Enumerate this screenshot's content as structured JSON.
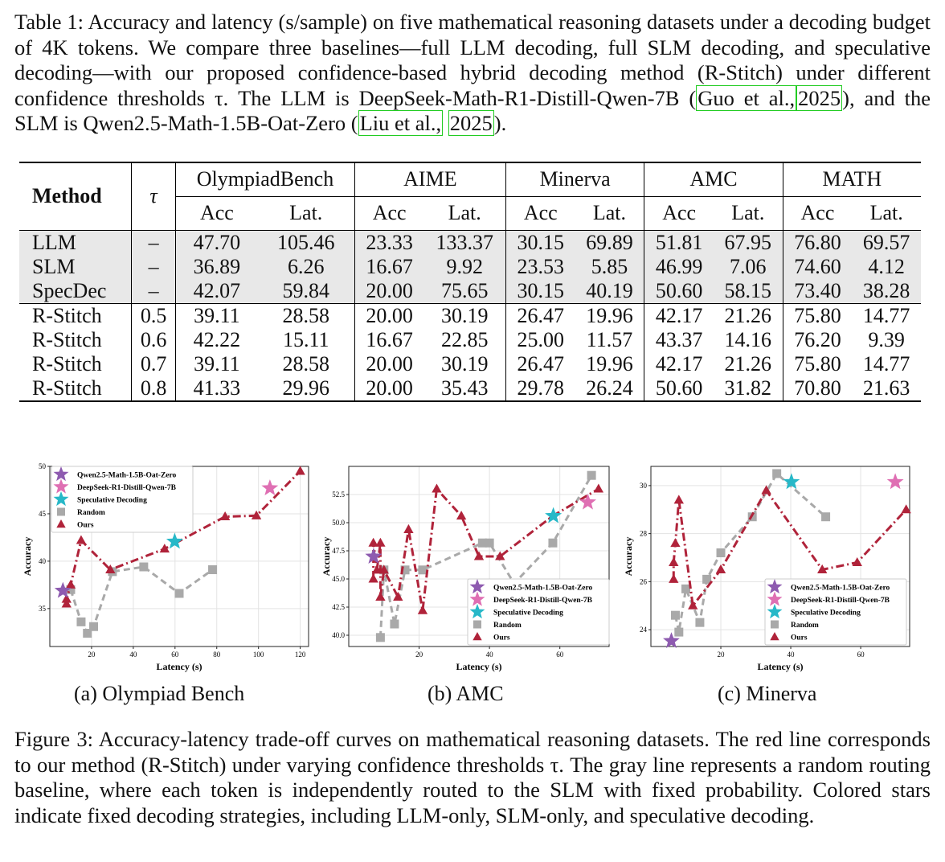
{
  "table_caption": {
    "prefix": "Table 1: Accuracy and latency (s/sample) on five mathematical reasoning datasets under a decoding budget of 4K tokens. We compare three baselines—full LLM decoding, full SLM decoding, and speculative decoding—with our proposed confidence-based hybrid decoding method (R-Stitch) under different confidence thresholds τ. The LLM is DeepSeek-Math-R1-Distill-Qwen-7B (",
    "cite1": "Guo et al.,",
    "cite2": "2025",
    "mid": "), and the SLM is Qwen2.5-Math-1.5B-Oat-Zero (",
    "cite3": "Liu et al.,",
    "cite4": "2025",
    "suffix": ")."
  },
  "table": {
    "method_header": "Method",
    "tau_header": "τ",
    "datasets": [
      "OlympiadBench",
      "AIME",
      "Minerva",
      "AMC",
      "MATH"
    ],
    "acc_label": "Acc",
    "lat_label": "Lat.",
    "baselines": [
      {
        "method": "LLM",
        "tau": "–",
        "values": [
          "47.70",
          "105.46",
          "23.33",
          "133.37",
          "30.15",
          "69.89",
          "51.81",
          "67.95",
          "76.80",
          "69.57"
        ]
      },
      {
        "method": "SLM",
        "tau": "–",
        "values": [
          "36.89",
          "6.26",
          "16.67",
          "9.92",
          "23.53",
          "5.85",
          "46.99",
          "7.06",
          "74.60",
          "4.12"
        ]
      },
      {
        "method": "SpecDec",
        "tau": "–",
        "values": [
          "42.07",
          "59.84",
          "20.00",
          "75.65",
          "30.15",
          "40.19",
          "50.60",
          "58.15",
          "73.40",
          "38.28"
        ]
      }
    ],
    "rstitch": [
      {
        "method": "R-Stitch",
        "tau": "0.5",
        "values": [
          "39.11",
          "28.58",
          "20.00",
          "30.19",
          "26.47",
          "19.96",
          "42.17",
          "21.26",
          "75.80",
          "14.77"
        ]
      },
      {
        "method": "R-Stitch",
        "tau": "0.6",
        "values": [
          "42.22",
          "15.11",
          "16.67",
          "22.85",
          "25.00",
          "11.57",
          "43.37",
          "14.16",
          "76.20",
          "9.39"
        ]
      },
      {
        "method": "R-Stitch",
        "tau": "0.7",
        "values": [
          "39.11",
          "28.58",
          "20.00",
          "30.19",
          "26.47",
          "19.96",
          "42.17",
          "21.26",
          "75.80",
          "14.77"
        ]
      },
      {
        "method": "R-Stitch",
        "tau": "0.8",
        "values": [
          "41.33",
          "29.96",
          "20.00",
          "35.43",
          "29.78",
          "26.24",
          "50.60",
          "31.82",
          "70.80",
          "21.63"
        ]
      }
    ]
  },
  "colors": {
    "slm_star": "#8e5bb0",
    "llm_star": "#df6fb3",
    "spec_star": "#27b8c8",
    "random": "#a9a9a9",
    "ours": "#b0233a"
  },
  "legend": [
    "Qwen2.5-Math-1.5B-Oat-Zero",
    "DeepSeek-R1-Distill-Qwen-7B",
    "Speculative Decoding",
    "Random",
    "Ours"
  ],
  "chart_data": [
    {
      "type": "scatter",
      "title": "",
      "subcaption": "(a) Olympiad Bench",
      "xlabel": "Latency (s)",
      "ylabel": "Accuracy",
      "xlim": [
        0,
        124
      ],
      "ylim": [
        31,
        50
      ],
      "xticks": [
        20,
        40,
        60,
        80,
        100,
        120
      ],
      "yticks": [
        35,
        40,
        45,
        50
      ],
      "legend_position": "upper-left",
      "slm": [
        6.26,
        36.89
      ],
      "llm": [
        105.46,
        47.7
      ],
      "spec": [
        59.84,
        42.07
      ],
      "random": [
        [
          10,
          37.0
        ],
        [
          15,
          33.6
        ],
        [
          18,
          32.4
        ],
        [
          21,
          33.1
        ],
        [
          30,
          38.9
        ],
        [
          45,
          39.4
        ],
        [
          62,
          36.6
        ],
        [
          78,
          39.1
        ]
      ],
      "ours": [
        [
          8,
          35.5
        ],
        [
          8,
          36.0
        ],
        [
          10,
          37.5
        ],
        [
          15,
          42.2
        ],
        [
          29,
          39.1
        ],
        [
          55,
          41.3
        ],
        [
          84,
          44.7
        ],
        [
          99,
          44.8
        ],
        [
          120,
          49.5
        ]
      ]
    },
    {
      "type": "scatter",
      "title": "",
      "subcaption": "(b) AMC",
      "xlabel": "Latency (s)",
      "ylabel": "Accuracy",
      "xlim": [
        0,
        74
      ],
      "ylim": [
        39,
        55
      ],
      "xticks": [
        20,
        40,
        60
      ],
      "yticks": [
        40.0,
        42.5,
        45.0,
        47.5,
        50.0,
        52.5
      ],
      "legend_position": "lower-right",
      "slm": [
        7.06,
        46.99
      ],
      "llm": [
        67.95,
        51.81
      ],
      "spec": [
        58.15,
        50.6
      ],
      "random": [
        [
          9,
          39.8
        ],
        [
          10,
          45.8
        ],
        [
          13,
          41.0
        ],
        [
          16,
          45.8
        ],
        [
          21,
          45.8
        ],
        [
          38,
          48.2
        ],
        [
          40,
          48.2
        ],
        [
          47,
          44.6
        ],
        [
          58,
          48.2
        ],
        [
          69,
          54.2
        ]
      ],
      "ours": [
        [
          7,
          45.0
        ],
        [
          7,
          48.2
        ],
        [
          8,
          45.8
        ],
        [
          9,
          48.2
        ],
        [
          9,
          43.4
        ],
        [
          10,
          45.8
        ],
        [
          14,
          43.4
        ],
        [
          17,
          49.4
        ],
        [
          21,
          42.2
        ],
        [
          25,
          53.0
        ],
        [
          32,
          50.6
        ],
        [
          37,
          47.0
        ],
        [
          43,
          47.0
        ],
        [
          58,
          50.6
        ],
        [
          71,
          53.0
        ]
      ]
    },
    {
      "type": "scatter",
      "title": "",
      "subcaption": "(c) Minerva",
      "xlabel": "Latency (s)",
      "ylabel": "Accuracy",
      "xlim": [
        0,
        74
      ],
      "ylim": [
        23.3,
        30.8
      ],
      "xticks": [
        20,
        40,
        60
      ],
      "yticks": [
        24,
        26,
        28,
        30
      ],
      "legend_position": "lower-right",
      "slm": [
        5.85,
        23.53
      ],
      "llm": [
        69.89,
        30.15
      ],
      "spec": [
        40.19,
        30.15
      ],
      "random": [
        [
          7,
          24.6
        ],
        [
          8,
          23.9
        ],
        [
          10,
          25.7
        ],
        [
          14,
          24.3
        ],
        [
          16,
          26.1
        ],
        [
          20,
          27.2
        ],
        [
          29,
          28.7
        ],
        [
          36,
          30.5
        ],
        [
          50,
          28.7
        ]
      ],
      "ours": [
        [
          6.5,
          26.1
        ],
        [
          6.5,
          26.8
        ],
        [
          7,
          27.6
        ],
        [
          8,
          29.4
        ],
        [
          12,
          25.0
        ],
        [
          20,
          26.5
        ],
        [
          33,
          29.8
        ],
        [
          49,
          26.5
        ],
        [
          59,
          26.8
        ],
        [
          73,
          29.0
        ]
      ]
    }
  ],
  "figure_caption": "Figure 3: Accuracy-latency trade-off curves on mathematical reasoning datasets. The red line corresponds to our method (R-Stitch) under varying confidence thresholds τ. The gray line represents a random routing baseline, where each token is independently routed to the SLM with fixed probability. Colored stars indicate fixed decoding strategies, including LLM-only, SLM-only, and speculative decoding."
}
